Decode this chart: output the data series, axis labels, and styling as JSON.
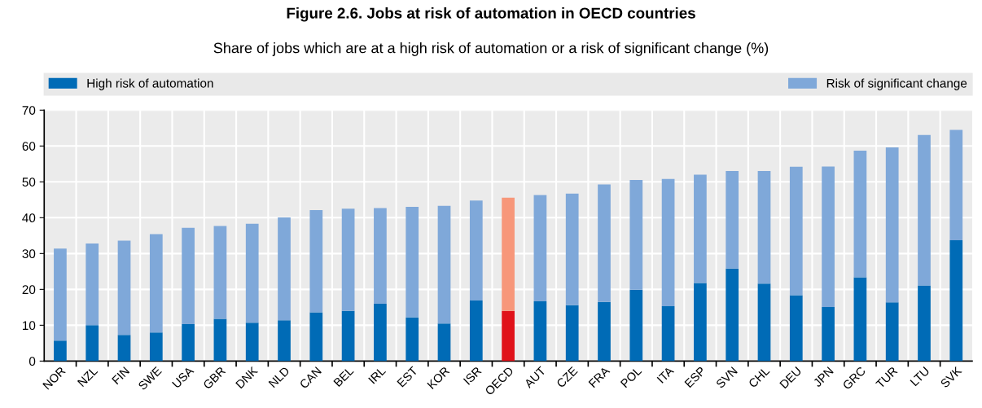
{
  "chart_data": {
    "type": "bar",
    "stacked": true,
    "title": "Figure 2.6. Jobs at risk of automation in OECD countries",
    "subtitle": "Share of jobs which are at a high risk of automation or a risk of significant change (%)",
    "categories": [
      "NOR",
      "NZL",
      "FIN",
      "SWE",
      "USA",
      "GBR",
      "DNK",
      "NLD",
      "CAN",
      "BEL",
      "IRL",
      "EST",
      "KOR",
      "ISR",
      "OECD",
      "AUT",
      "CZE",
      "FRA",
      "POL",
      "ITA",
      "ESP",
      "SVN",
      "CHL",
      "DEU",
      "JPN",
      "GRC",
      "TUR",
      "LTU",
      "SVK"
    ],
    "series": [
      {
        "name": "High risk of automation",
        "color": "#006bb6",
        "colors": [
          "#006bb6",
          "#006bb6",
          "#006bb6",
          "#006bb6",
          "#006bb6",
          "#006bb6",
          "#006bb6",
          "#006bb6",
          "#006bb6",
          "#006bb6",
          "#006bb6",
          "#006bb6",
          "#006bb6",
          "#006bb6",
          "#e0121a",
          "#006bb6",
          "#006bb6",
          "#006bb6",
          "#006bb6",
          "#006bb6",
          "#006bb6",
          "#006bb6",
          "#006bb6",
          "#006bb6",
          "#006bb6",
          "#006bb6",
          "#006bb6",
          "#006bb6",
          "#006bb6"
        ],
        "values": [
          5.7,
          10.0,
          7.3,
          8.0,
          10.3,
          11.8,
          10.7,
          11.4,
          13.6,
          14.0,
          16.0,
          12.2,
          10.5,
          16.9,
          14.0,
          16.7,
          15.6,
          16.5,
          19.9,
          15.3,
          21.8,
          25.8,
          21.6,
          18.4,
          15.1,
          23.4,
          16.4,
          21.1,
          33.7
        ]
      },
      {
        "name": "Risk of significant change",
        "color": "#7fa8d9",
        "colors": [
          "#7fa8d9",
          "#7fa8d9",
          "#7fa8d9",
          "#7fa8d9",
          "#7fa8d9",
          "#7fa8d9",
          "#7fa8d9",
          "#7fa8d9",
          "#7fa8d9",
          "#7fa8d9",
          "#7fa8d9",
          "#7fa8d9",
          "#7fa8d9",
          "#7fa8d9",
          "#f7977a",
          "#7fa8d9",
          "#7fa8d9",
          "#7fa8d9",
          "#7fa8d9",
          "#7fa8d9",
          "#7fa8d9",
          "#7fa8d9",
          "#7fa8d9",
          "#7fa8d9",
          "#7fa8d9",
          "#7fa8d9",
          "#7fa8d9",
          "#7fa8d9",
          "#7fa8d9"
        ],
        "values": [
          25.7,
          22.8,
          26.3,
          27.4,
          26.9,
          25.9,
          27.6,
          28.7,
          28.5,
          28.5,
          26.7,
          30.8,
          32.8,
          27.9,
          31.6,
          29.6,
          31.1,
          32.8,
          30.6,
          35.5,
          30.2,
          27.2,
          31.4,
          35.8,
          39.2,
          35.3,
          43.2,
          42.0,
          30.8
        ]
      }
    ],
    "ylim": [
      0,
      70
    ],
    "yticks": [
      0,
      10,
      20,
      30,
      40,
      50,
      60,
      70
    ],
    "grid": true,
    "legend": "top"
  }
}
